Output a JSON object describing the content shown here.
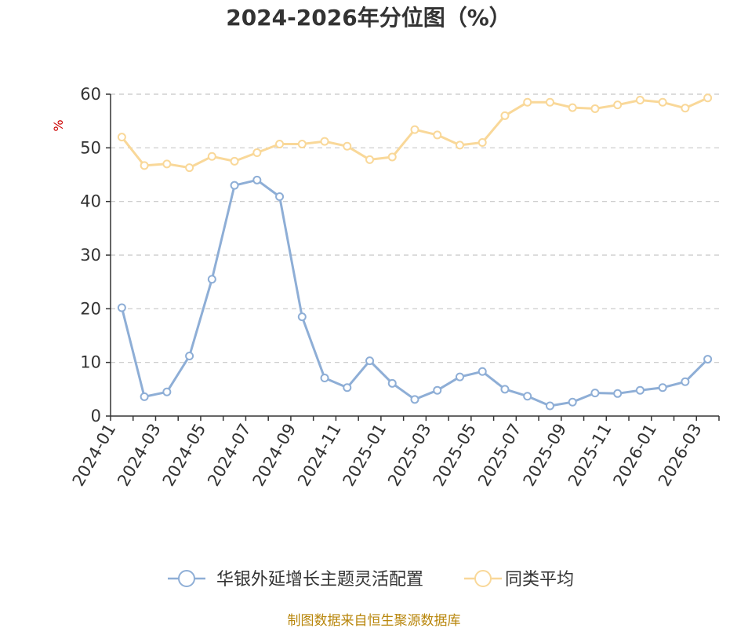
{
  "chart_data": {
    "type": "line",
    "title": "2024-2026年分位图（%）",
    "ylabel": "%",
    "ylim": [
      0,
      60
    ],
    "yticks": [
      0,
      10,
      20,
      30,
      40,
      50,
      60
    ],
    "grid": true,
    "legend_position": "bottom",
    "x": [
      "2024-01",
      "2024-02",
      "2024-03",
      "2024-04",
      "2024-05",
      "2024-06",
      "2024-07",
      "2024-08",
      "2024-09",
      "2024-10",
      "2024-11",
      "2024-12",
      "2025-01",
      "2025-02",
      "2025-03",
      "2025-04",
      "2025-05",
      "2025-06",
      "2025-07",
      "2025-08",
      "2025-09",
      "2025-10",
      "2025-11",
      "2025-12",
      "2026-01",
      "2026-02",
      "2026-03"
    ],
    "xtick_labels": [
      "2024-01",
      "2024-03",
      "2024-05",
      "2024-07",
      "2024-09",
      "2024-11",
      "2025-01",
      "2025-03",
      "2025-05",
      "2025-07",
      "2025-09",
      "2025-11",
      "2026-01",
      "2026-03"
    ],
    "series": [
      {
        "name": "华银外延增长主题灵活配置",
        "color": "#8eaed6",
        "values": [
          20.2,
          3.6,
          4.5,
          11.2,
          25.5,
          43.0,
          44.0,
          40.9,
          18.5,
          7.1,
          5.3,
          10.3,
          6.1,
          3.1,
          4.8,
          7.3,
          8.3,
          5.0,
          3.7,
          1.9,
          2.6,
          4.3,
          4.2,
          4.8,
          5.3,
          6.4,
          10.6
        ]
      },
      {
        "name": "同类平均",
        "color": "#f9d899",
        "values": [
          52.0,
          46.7,
          47.0,
          46.3,
          48.4,
          47.5,
          49.1,
          50.7,
          50.7,
          51.2,
          50.3,
          47.8,
          48.3,
          53.4,
          52.4,
          50.5,
          51.0,
          56.0,
          58.5,
          58.5,
          57.5,
          57.3,
          58.0,
          58.9,
          58.5,
          57.4,
          59.3
        ]
      }
    ]
  },
  "source": "制图数据来自恒生聚源数据库"
}
